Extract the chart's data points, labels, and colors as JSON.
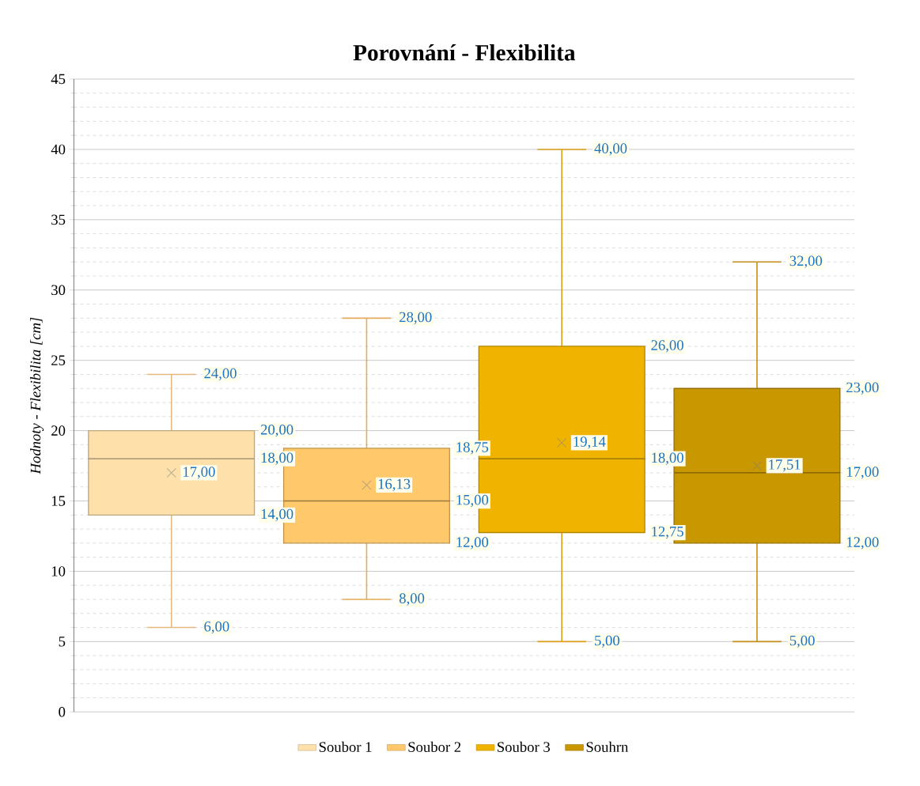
{
  "chart_data": {
    "type": "box",
    "title": "Porovnání - Flexibilita",
    "ylabel": "Hodnoty - Flexibilita [cm]",
    "categories": [
      null
    ],
    "series": [
      {
        "name": "Soubor 1",
        "color": "#fde0aa",
        "boxes": [
          {
            "low": 6,
            "q1": 14,
            "median": 18,
            "q3": 20,
            "high": 24,
            "mean": 17
          }
        ]
      },
      {
        "name": "Soubor 2",
        "color": "#ffc96b",
        "boxes": [
          {
            "low": 8,
            "q1": 12,
            "median": 15,
            "q3": 18.75,
            "high": 28,
            "mean": 16.13
          }
        ]
      },
      {
        "name": "Soubor 3",
        "color": "#f0b400",
        "boxes": [
          {
            "low": 5,
            "q1": 12.75,
            "median": 18,
            "q3": 26,
            "high": 40,
            "mean": 19.14
          }
        ]
      },
      {
        "name": "Souhrn",
        "color": "#c99700",
        "boxes": [
          {
            "low": 5,
            "q1": 12,
            "median": 17,
            "q3": 23,
            "high": 32,
            "mean": 17.51
          }
        ]
      }
    ],
    "annotations": [
      "6,00",
      "14,00",
      "18,00",
      "20,00",
      "24,00",
      "17,00",
      "8,00",
      "12,00",
      "15,00",
      "18,75",
      "28,00",
      "16,13",
      "5,00",
      "12,75",
      "18,00",
      "26,00",
      "40,00",
      "19,14",
      "5,00",
      "12,00",
      "17,00",
      "23,00",
      "32,00",
      "17,51"
    ],
    "ylim": [
      0,
      45
    ],
    "yticks": [
      0,
      5,
      10,
      15,
      20,
      25,
      30,
      35,
      40,
      45
    ],
    "grid": "y",
    "legend": "bottom",
    "tick_labels": "y"
  }
}
